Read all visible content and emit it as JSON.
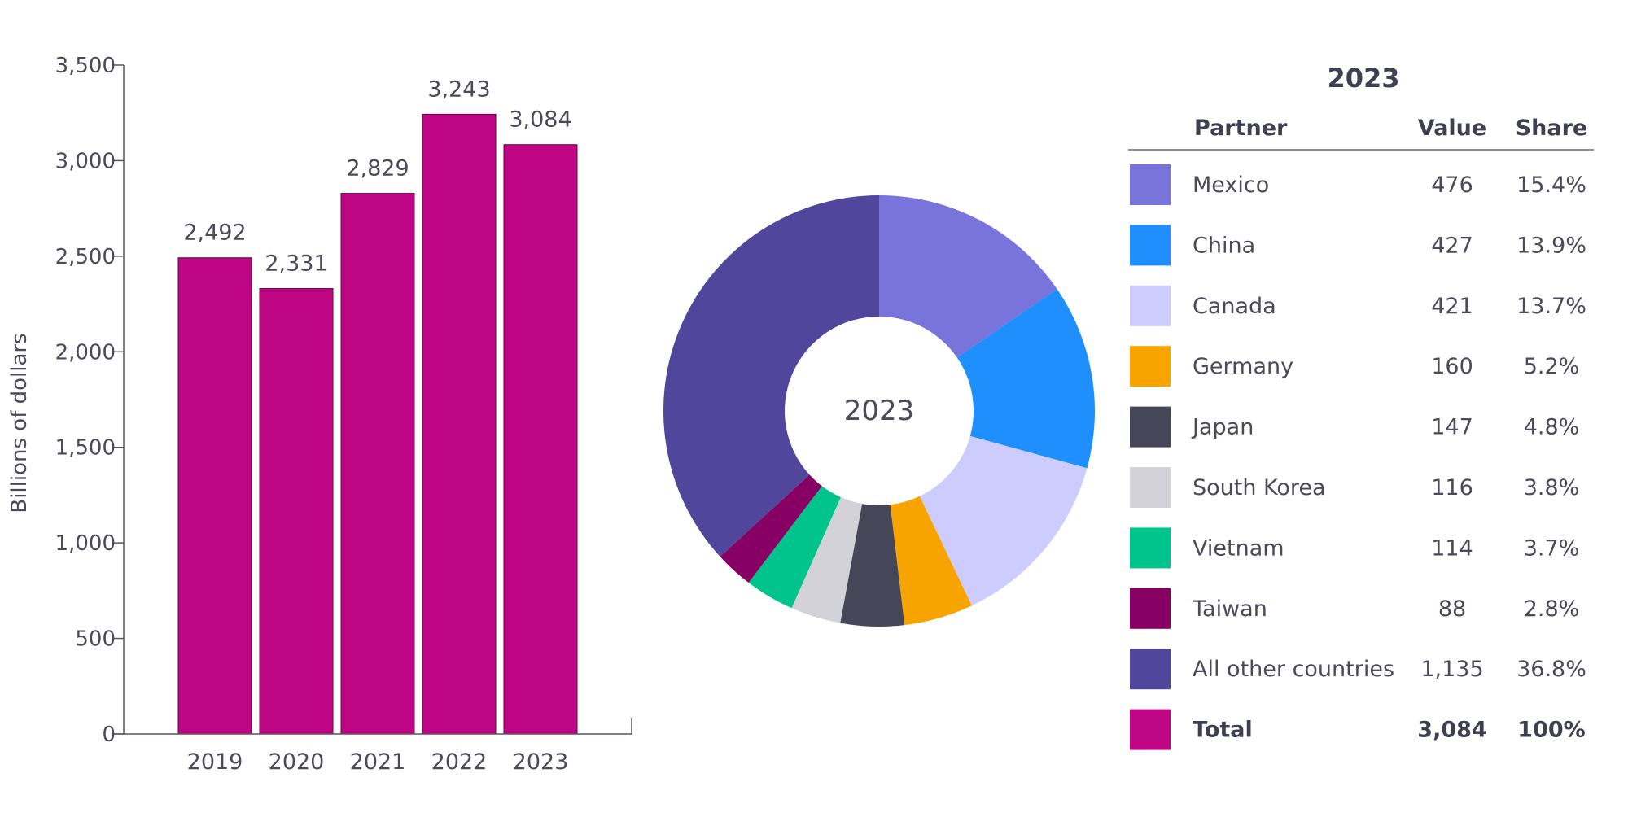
{
  "chart_data": [
    {
      "type": "bar",
      "ylabel": "Billions of dollars",
      "xlabel": "",
      "ylim": [
        0,
        3500
      ],
      "yticks": [
        "0",
        "500",
        "1,000",
        "1,500",
        "2,000",
        "2,500",
        "3,000",
        "3,500"
      ],
      "ytick_values": [
        0,
        500,
        1000,
        1500,
        2000,
        2500,
        3000,
        3500
      ],
      "categories": [
        "2019",
        "2020",
        "2021",
        "2022",
        "2023"
      ],
      "values": [
        2492,
        2331,
        2829,
        3243,
        3084
      ],
      "data_labels": [
        "2,492",
        "2,331",
        "2,829",
        "3,243",
        "3,084"
      ],
      "grid": false,
      "bar_color": "#be0684"
    },
    {
      "type": "pie",
      "center_label": "2023",
      "slices": [
        {
          "label": "Mexico",
          "value": 476,
          "color": "#7874dc"
        },
        {
          "label": "China",
          "value": 427,
          "color": "#1f8ffe"
        },
        {
          "label": "Canada",
          "value": 421,
          "color": "#ccccfe"
        },
        {
          "label": "Germany",
          "value": 160,
          "color": "#f8a400"
        },
        {
          "label": "Japan",
          "value": 147,
          "color": "#454657"
        },
        {
          "label": "South Korea",
          "value": 116,
          "color": "#d2d2d8"
        },
        {
          "label": "Vietnam",
          "value": 114,
          "color": "#00c48c"
        },
        {
          "label": "Taiwan",
          "value": 88,
          "color": "#870063"
        },
        {
          "label": "All other countries",
          "value": 1135,
          "color": "#50469c"
        }
      ]
    },
    {
      "type": "table",
      "title": "2023",
      "columns": [
        "Partner",
        "Value",
        "Share"
      ],
      "rows": [
        {
          "partner": "Mexico",
          "value": "476",
          "share": "15.4%",
          "color": "#7874dc"
        },
        {
          "partner": "China",
          "value": "427",
          "share": "13.9%",
          "color": "#1f8ffe"
        },
        {
          "partner": "Canada",
          "value": "421",
          "share": "13.7%",
          "color": "#ccccfe"
        },
        {
          "partner": "Germany",
          "value": "160",
          "share": "5.2%",
          "color": "#f8a400"
        },
        {
          "partner": "Japan",
          "value": "147",
          "share": "4.8%",
          "color": "#454657"
        },
        {
          "partner": "South Korea",
          "value": "116",
          "share": "3.8%",
          "color": "#d2d2d8"
        },
        {
          "partner": "Vietnam",
          "value": "114",
          "share": "3.7%",
          "color": "#00c48c"
        },
        {
          "partner": "Taiwan",
          "value": "88",
          "share": "2.8%",
          "color": "#870063"
        },
        {
          "partner": "All other countries",
          "value": "1,135",
          "share": "36.8%",
          "color": "#50469c"
        },
        {
          "partner": "Total",
          "value": "3,084",
          "share": "100%",
          "color": "#be0684",
          "bold": true
        }
      ]
    }
  ]
}
